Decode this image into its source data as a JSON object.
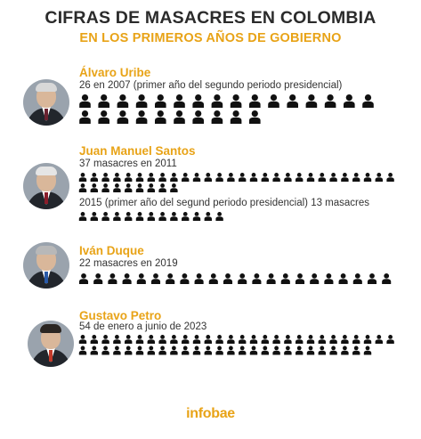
{
  "title": "CIFRAS DE MASACRES EN COLOMBIA",
  "subtitle": "EN LOS PRIMEROS AÑOS DE GOBIERNO",
  "logo": "infobae",
  "colors": {
    "accent": "#e8a317",
    "title": "#2b2b2b",
    "icon": "#111111"
  },
  "presidents": [
    {
      "name": "Álvaro Uribe",
      "lines": [
        "26 en 2007 (primer año del segundo periodo presidencial)"
      ]
    },
    {
      "name": "Juan Manuel Santos",
      "lines": [
        "37 masacres en 2011",
        "2015 (primer año del segund periodo presidencial) 13 masacres"
      ]
    },
    {
      "name": "Iván Duque",
      "lines": [
        "22 masacres en 2019"
      ]
    },
    {
      "name": "Gustavo Petro",
      "lines": [
        "54 de enero a junio de 2023"
      ]
    }
  ],
  "chart_data": {
    "type": "pictograph",
    "title": "CIFRAS DE MASACRES EN COLOMBIA",
    "subtitle": "EN LOS PRIMEROS AÑOS DE GOBIERNO",
    "categories": [
      "Álvaro Uribe (2007)",
      "Juan Manuel Santos (2011)",
      "Juan Manuel Santos (2015)",
      "Iván Duque (2019)",
      "Gustavo Petro (ene-jun 2023)"
    ],
    "values": [
      26,
      37,
      13,
      22,
      54
    ],
    "icon": "person-icon"
  }
}
